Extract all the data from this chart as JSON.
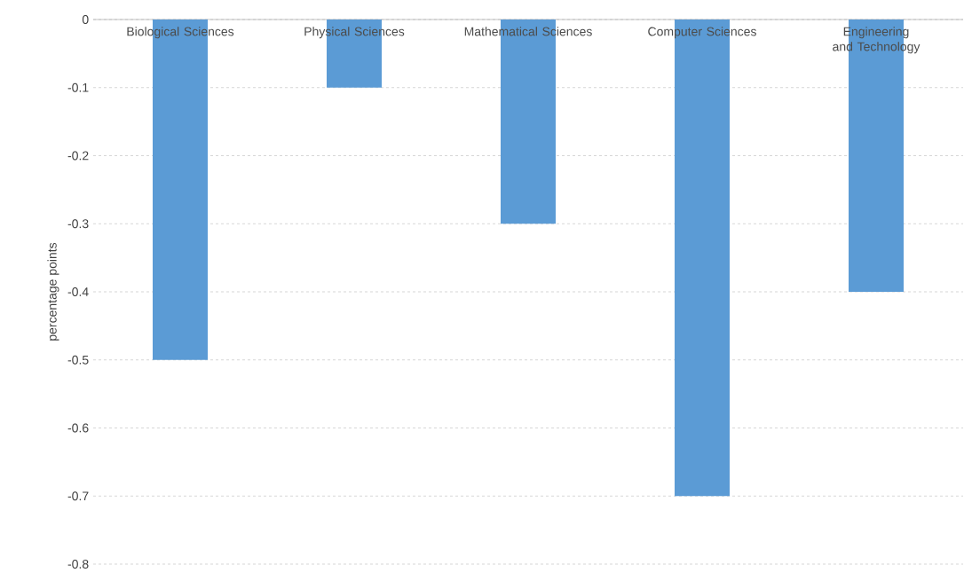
{
  "chart_data": {
    "type": "bar",
    "ylabel": "percentage points",
    "categories": [
      "Biological Sciences",
      "Physical Sciences",
      "Mathematical Sciences",
      "Computer Sciences",
      "Engineering and Technology"
    ],
    "values": [
      -0.5,
      -0.1,
      -0.3,
      -0.7,
      -0.4
    ],
    "color": "#5b9bd5",
    "ylim": [
      -0.8,
      0
    ],
    "yticks": [
      -0.8,
      -0.7,
      -0.6,
      -0.5,
      -0.4,
      -0.3,
      -0.2,
      -0.1,
      0
    ],
    "grid": "y"
  }
}
